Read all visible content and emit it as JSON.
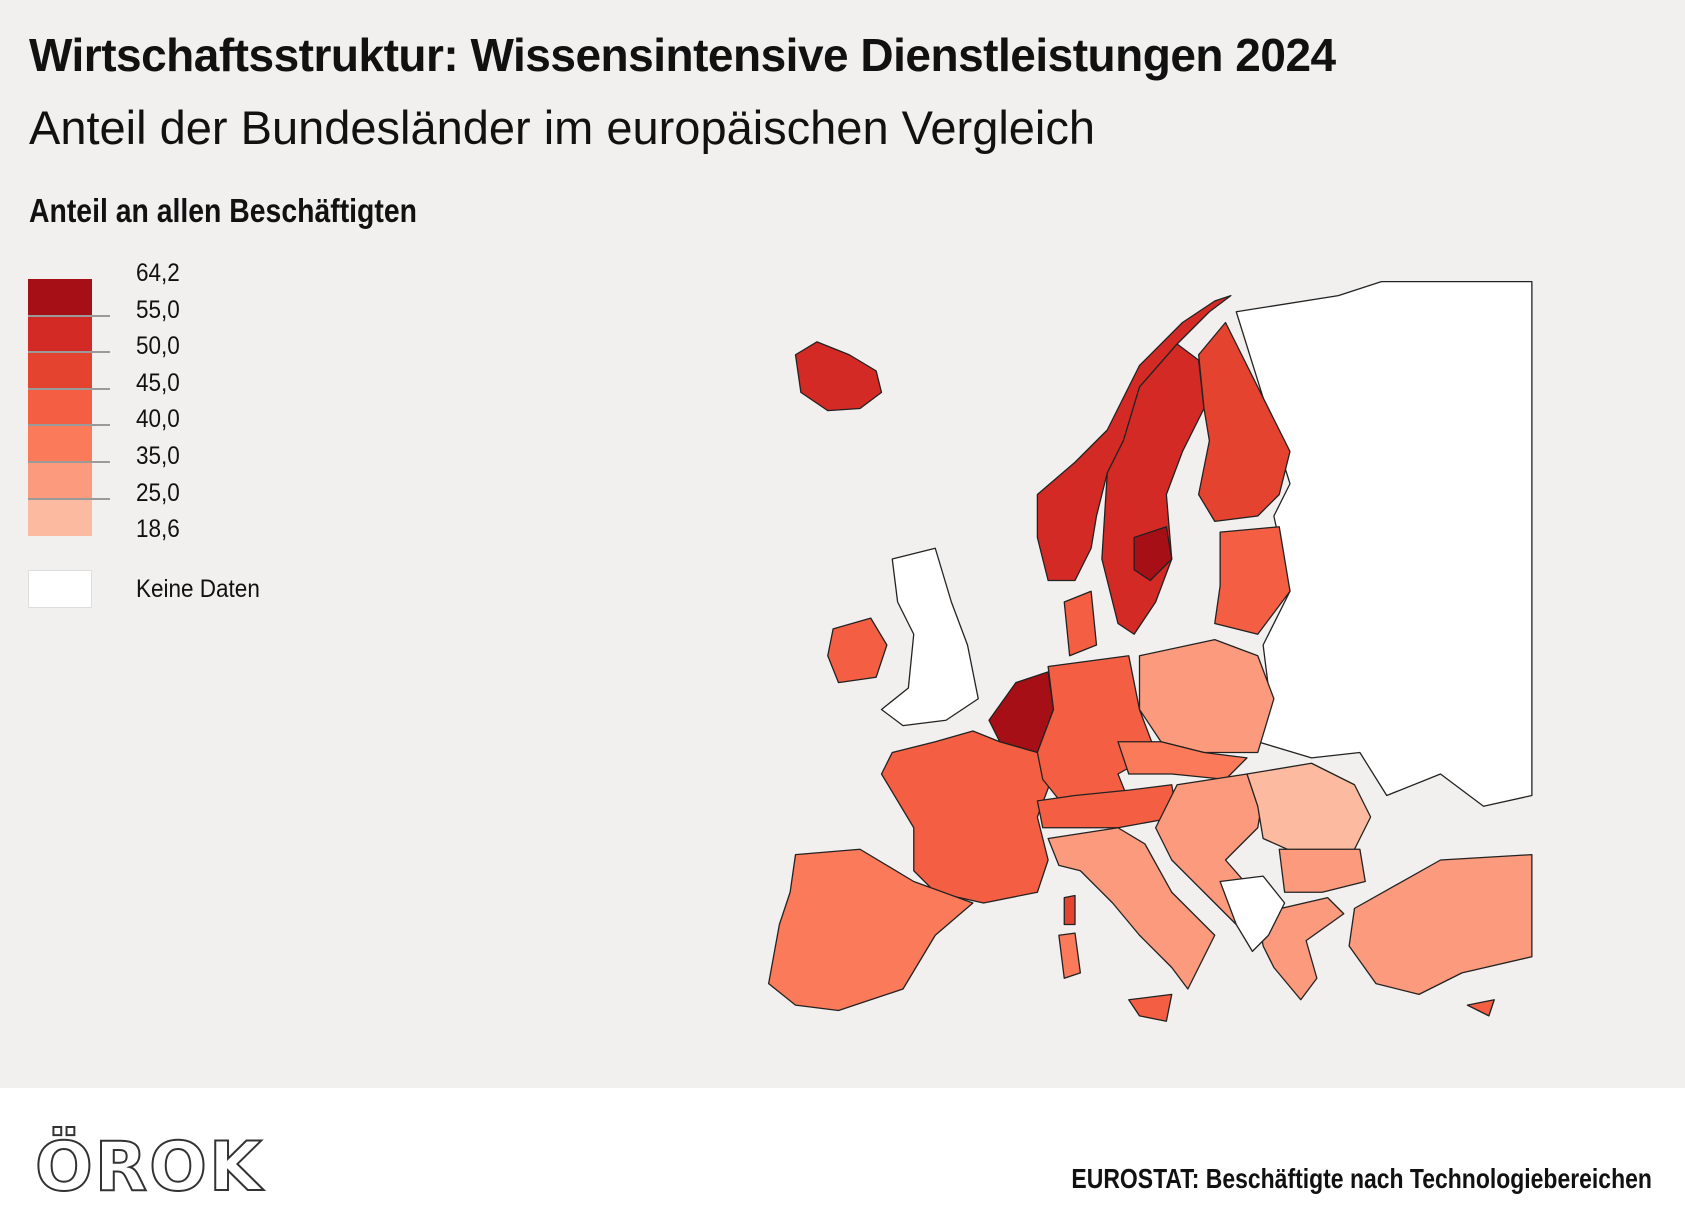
{
  "header": {
    "title": "Wirtschaftsstruktur: Wissensintensive Dienstleistungen 2024",
    "subtitle": "Anteil der Bundesländer im europäischen Vergleich"
  },
  "legend": {
    "title": "Anteil an allen Beschäftigten",
    "breaks": [
      "64,2",
      "55,0",
      "50,0",
      "45,0",
      "40,0",
      "35,0",
      "25,0",
      "18,6"
    ],
    "colors": [
      "#a50f15",
      "#d42a25",
      "#e4432f",
      "#f45f43",
      "#fa7a5a",
      "#fb9a7c",
      "#fcbaa0"
    ],
    "no_data_label": "Keine Daten",
    "no_data_color": "#ffffff"
  },
  "footer": {
    "logo": "ÖROK",
    "source": "EUROSTAT: Beschäftigte nach Technologiebereichen"
  }
}
